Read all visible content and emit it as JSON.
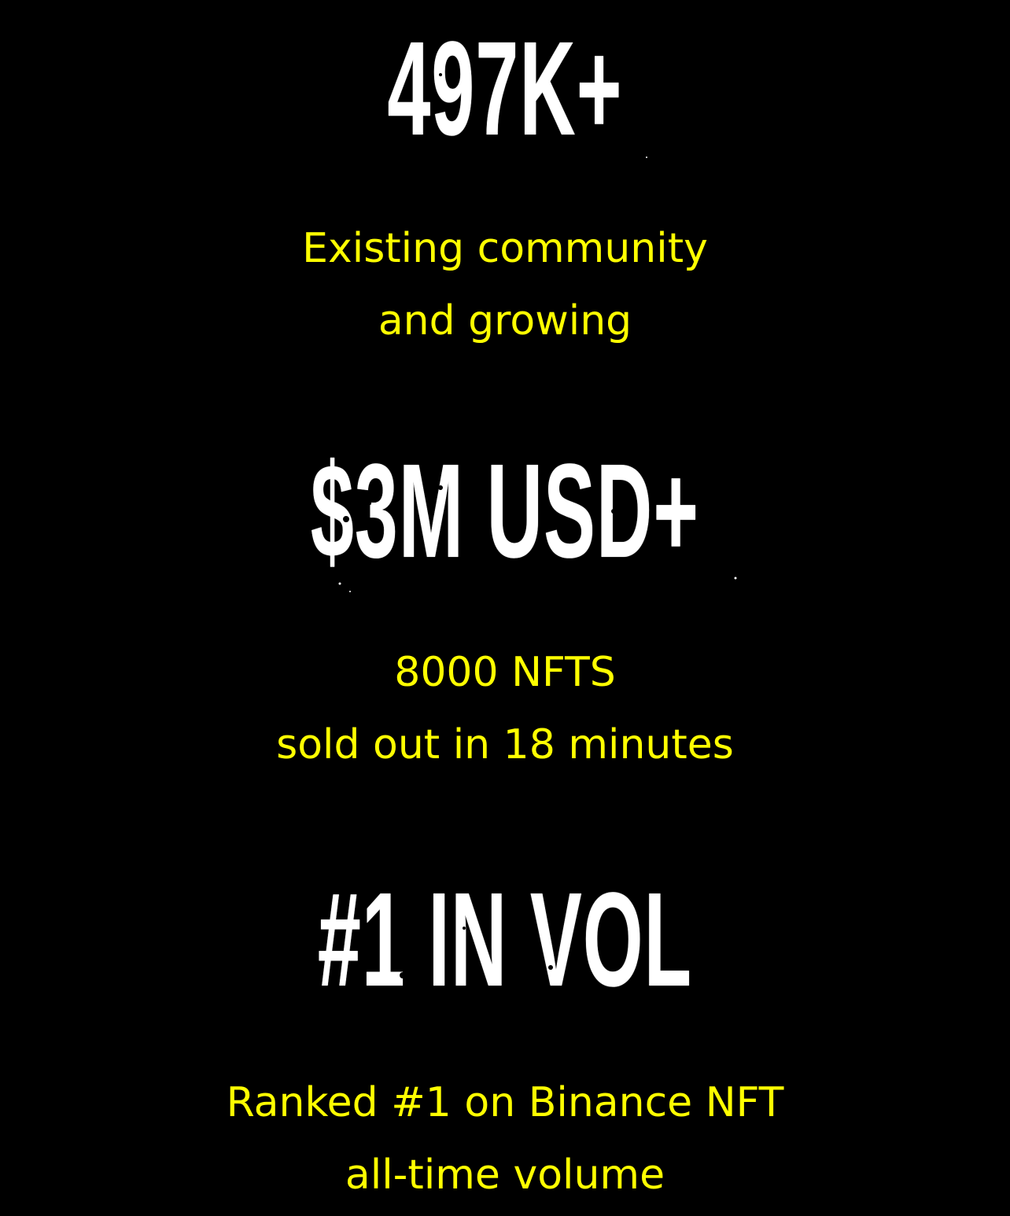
{
  "stats": [
    {
      "headline": "497K+",
      "caption_line1": "Existing community",
      "caption_line2": "and growing"
    },
    {
      "headline": "$3M USD+",
      "caption_line1": "8000 NFTS",
      "caption_line2": "sold out in 18 minutes"
    },
    {
      "headline": "#1 IN VOL",
      "caption_line1": "Ranked #1 on Binance NFT",
      "caption_line2": "all-time volume"
    }
  ],
  "colors": {
    "background": "#000000",
    "headline": "#ffffff",
    "caption": "#ffff00"
  }
}
